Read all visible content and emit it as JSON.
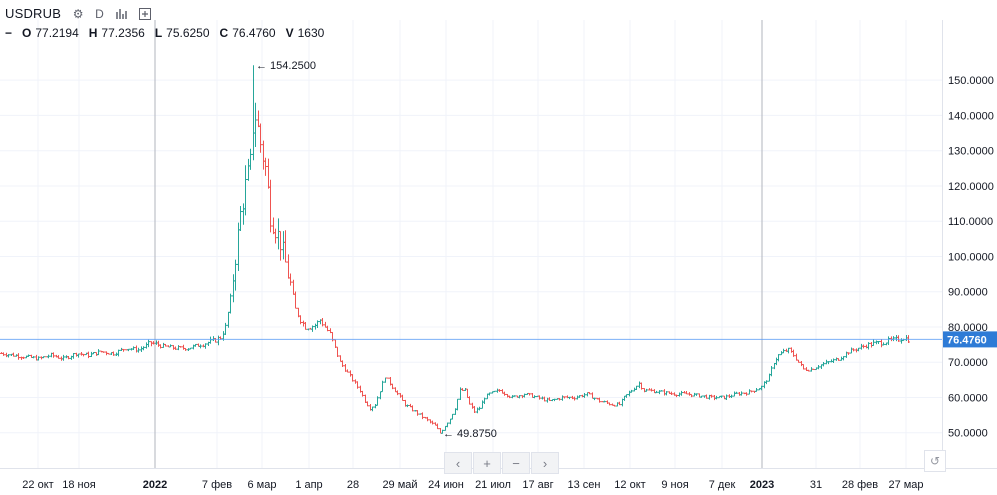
{
  "header": {
    "symbol": "USDRUB",
    "resolution": "D",
    "ohlc": {
      "o_label": "O",
      "o_value": "77.2194",
      "h_label": "H",
      "h_value": "77.2356",
      "l_label": "L",
      "l_value": "75.6250",
      "c_label": "C",
      "c_value": "76.4760",
      "v_label": "V",
      "v_value": "1630"
    }
  },
  "chart_data": {
    "type": "line",
    "title": "USDRUB",
    "ylim": [
      40,
      166.5
    ],
    "y_ticks": [
      "50.0000",
      "60.0000",
      "70.0000",
      "80.0000",
      "90.0000",
      "100.0000",
      "110.0000",
      "120.0000",
      "130.0000",
      "140.0000",
      "150.0000"
    ],
    "x_ticks": [
      "22 окт",
      "18 ноя",
      "2022",
      "7 фев",
      "6 мар",
      "1 апр",
      "28",
      "29 май",
      "24 июн",
      "21 июл",
      "17 авг",
      "13 сен",
      "12 окт",
      "9 ноя",
      "7 дек",
      "2023",
      "31",
      "28 фев",
      "27 мар"
    ],
    "current_price": 76.476,
    "current_price_label": "76.4760",
    "annotations": [
      {
        "label": "154.2500",
        "value": 154.25,
        "x_index": 101
      },
      {
        "label": "49.8750",
        "value": 49.875,
        "x_index": 176
      }
    ],
    "series": [
      {
        "values": [
          [
            0,
            72.5
          ],
          [
            5,
            72
          ],
          [
            10,
            71.5
          ],
          [
            15,
            71
          ],
          [
            20,
            72
          ],
          [
            25,
            71
          ],
          [
            30,
            72.5
          ],
          [
            35,
            72
          ],
          [
            40,
            73
          ],
          [
            45,
            72.5
          ],
          [
            50,
            74
          ],
          [
            55,
            73.5
          ],
          [
            60,
            75.5
          ],
          [
            65,
            74.5
          ],
          [
            70,
            74
          ],
          [
            75,
            74
          ],
          [
            80,
            75
          ],
          [
            85,
            76
          ],
          [
            88,
            77
          ],
          [
            90,
            80
          ],
          [
            92,
            88
          ],
          [
            94,
            100
          ],
          [
            96,
            112
          ],
          [
            98,
            120
          ],
          [
            100,
            126
          ],
          [
            101,
            154.25
          ],
          [
            102,
            140
          ],
          [
            104,
            132
          ],
          [
            106,
            125
          ],
          [
            108,
            112
          ],
          [
            110,
            108
          ],
          [
            112,
            104
          ],
          [
            114,
            98
          ],
          [
            116,
            92
          ],
          [
            118,
            85
          ],
          [
            120,
            82
          ],
          [
            122,
            80
          ],
          [
            124,
            80
          ],
          [
            126,
            80.5
          ],
          [
            128,
            82
          ],
          [
            130,
            80
          ],
          [
            132,
            78
          ],
          [
            134,
            74
          ],
          [
            136,
            70
          ],
          [
            138,
            68
          ],
          [
            140,
            66
          ],
          [
            142,
            64
          ],
          [
            144,
            62
          ],
          [
            146,
            59
          ],
          [
            148,
            57
          ],
          [
            150,
            58
          ],
          [
            152,
            62
          ],
          [
            154,
            66
          ],
          [
            156,
            64
          ],
          [
            158,
            62
          ],
          [
            160,
            60
          ],
          [
            162,
            58
          ],
          [
            164,
            57
          ],
          [
            166,
            56
          ],
          [
            168,
            55
          ],
          [
            170,
            54
          ],
          [
            172,
            53
          ],
          [
            174,
            52
          ],
          [
            176,
            49.875
          ],
          [
            178,
            52
          ],
          [
            180,
            54
          ],
          [
            182,
            57
          ],
          [
            184,
            62
          ],
          [
            186,
            62
          ],
          [
            188,
            58
          ],
          [
            190,
            56
          ],
          [
            192,
            57
          ],
          [
            194,
            60
          ],
          [
            196,
            61
          ],
          [
            200,
            62
          ],
          [
            205,
            60
          ],
          [
            210,
            61
          ],
          [
            215,
            60
          ],
          [
            220,
            59
          ],
          [
            225,
            60
          ],
          [
            230,
            60
          ],
          [
            235,
            61
          ],
          [
            240,
            59
          ],
          [
            245,
            58
          ],
          [
            248,
            58
          ],
          [
            250,
            60
          ],
          [
            253,
            62
          ],
          [
            256,
            64
          ],
          [
            258,
            62
          ],
          [
            260,
            62
          ],
          [
            265,
            61.5
          ],
          [
            270,
            61
          ],
          [
            275,
            61
          ],
          [
            280,
            60.5
          ],
          [
            285,
            60
          ],
          [
            290,
            60
          ],
          [
            295,
            61
          ],
          [
            300,
            61.5
          ],
          [
            305,
            63
          ],
          [
            308,
            66
          ],
          [
            310,
            70
          ],
          [
            312,
            72
          ],
          [
            314,
            73
          ],
          [
            316,
            73.5
          ],
          [
            318,
            72
          ],
          [
            320,
            70
          ],
          [
            322,
            68
          ],
          [
            325,
            68
          ],
          [
            328,
            69
          ],
          [
            332,
            70
          ],
          [
            336,
            71
          ],
          [
            340,
            73
          ],
          [
            344,
            74
          ],
          [
            348,
            75
          ],
          [
            352,
            75.5
          ],
          [
            356,
            76
          ],
          [
            360,
            76.5
          ],
          [
            362,
            77
          ],
          [
            364,
            76.476
          ]
        ]
      }
    ]
  }
}
